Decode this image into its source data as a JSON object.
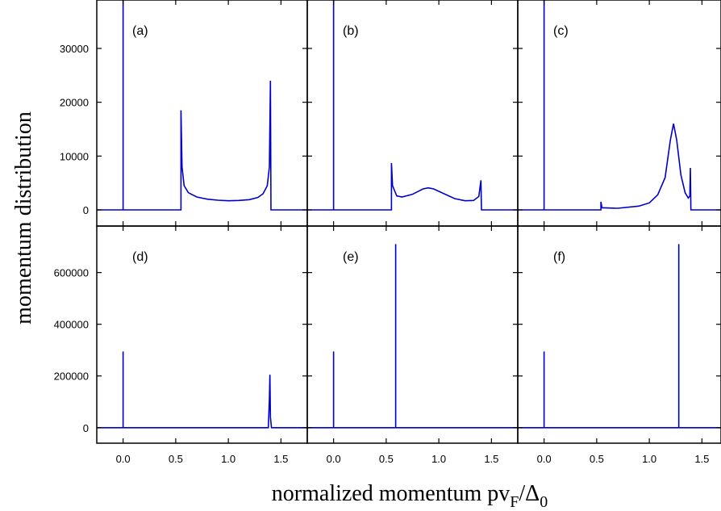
{
  "chart_data": {
    "type": "line",
    "layout": "2x3 panel grid, shared x axis per column, shared y axis per row",
    "xlabel": {
      "main": "normalized momentum  pv",
      "sub1": "F",
      "mid": "/Δ",
      "sub2": "0"
    },
    "ylabel": "momentum distribution",
    "xlim": [
      -0.25,
      1.75
    ],
    "xticks": [
      "0.0",
      "0.5",
      "1.0",
      "1.5"
    ],
    "x_tick_values": [
      0.0,
      0.5,
      1.0,
      1.5
    ],
    "rows": [
      {
        "ylim": [
          -3000,
          39000
        ],
        "yticks": [
          "0",
          "10000",
          "20000",
          "30000"
        ],
        "y_tick_values": [
          0,
          10000,
          20000,
          30000
        ]
      },
      {
        "ylim": [
          -60000,
          780000
        ],
        "yticks": [
          "0",
          "200000",
          "400000",
          "600000"
        ],
        "y_tick_values": [
          0,
          200000,
          400000,
          600000
        ]
      }
    ],
    "line_color": "#0000cc",
    "grid": false,
    "panels": [
      {
        "label": "(a)",
        "row": 0,
        "col": 0,
        "series": [
          {
            "points": [
              [
                -0.25,
                0
              ],
              [
                0,
                0
              ],
              [
                0,
                39000
              ],
              [
                0,
                0
              ],
              [
                0.55,
                0
              ],
              [
                0.55,
                18500
              ],
              [
                0.56,
                8000
              ],
              [
                0.58,
                4500
              ],
              [
                0.62,
                3200
              ],
              [
                0.7,
                2400
              ],
              [
                0.8,
                2000
              ],
              [
                0.9,
                1800
              ],
              [
                1.0,
                1700
              ],
              [
                1.1,
                1750
              ],
              [
                1.2,
                1900
              ],
              [
                1.28,
                2300
              ],
              [
                1.33,
                3000
              ],
              [
                1.37,
                4500
              ],
              [
                1.39,
                8000
              ],
              [
                1.4,
                24000
              ],
              [
                1.405,
                0
              ],
              [
                1.75,
                0
              ]
            ]
          }
        ]
      },
      {
        "label": "(b)",
        "row": 0,
        "col": 1,
        "series": [
          {
            "points": [
              [
                -0.25,
                0
              ],
              [
                0,
                0
              ],
              [
                0,
                39000
              ],
              [
                0,
                0
              ],
              [
                0.55,
                0
              ],
              [
                0.55,
                8700
              ],
              [
                0.56,
                4500
              ],
              [
                0.6,
                2600
              ],
              [
                0.65,
                2400
              ],
              [
                0.75,
                2900
              ],
              [
                0.85,
                3900
              ],
              [
                0.9,
                4100
              ],
              [
                0.95,
                3900
              ],
              [
                1.05,
                3000
              ],
              [
                1.15,
                2100
              ],
              [
                1.25,
                1700
              ],
              [
                1.33,
                1750
              ],
              [
                1.38,
                2500
              ],
              [
                1.4,
                5500
              ],
              [
                1.405,
                0
              ],
              [
                1.75,
                0
              ]
            ]
          }
        ]
      },
      {
        "label": "(c)",
        "row": 0,
        "col": 2,
        "series": [
          {
            "points": [
              [
                -0.25,
                0
              ],
              [
                0,
                0
              ],
              [
                0,
                39000
              ],
              [
                0,
                0
              ],
              [
                0.54,
                0
              ],
              [
                0.54,
                1500
              ],
              [
                0.55,
                400
              ],
              [
                0.7,
                300
              ],
              [
                0.9,
                700
              ],
              [
                1.0,
                1300
              ],
              [
                1.08,
                2800
              ],
              [
                1.15,
                6000
              ],
              [
                1.2,
                13000
              ],
              [
                1.23,
                16000
              ],
              [
                1.26,
                13000
              ],
              [
                1.3,
                6500
              ],
              [
                1.34,
                3200
              ],
              [
                1.37,
                2200
              ],
              [
                1.385,
                2600
              ],
              [
                1.39,
                7800
              ],
              [
                1.395,
                0
              ],
              [
                1.75,
                0
              ]
            ]
          }
        ]
      },
      {
        "label": "(d)",
        "row": 1,
        "col": 0,
        "series": [
          {
            "points": [
              [
                -0.25,
                0
              ],
              [
                0,
                0
              ],
              [
                0,
                295000
              ],
              [
                0,
                0
              ],
              [
                1.38,
                0
              ],
              [
                1.39,
                110000
              ],
              [
                1.395,
                205000
              ],
              [
                1.4,
                40000
              ],
              [
                1.41,
                0
              ],
              [
                1.75,
                0
              ]
            ]
          }
        ]
      },
      {
        "label": "(e)",
        "row": 1,
        "col": 1,
        "series": [
          {
            "points": [
              [
                -0.25,
                0
              ],
              [
                0,
                0
              ],
              [
                0,
                295000
              ],
              [
                0,
                0
              ],
              [
                0.59,
                0
              ],
              [
                0.59,
                710000
              ],
              [
                0.59,
                0
              ],
              [
                1.75,
                0
              ]
            ]
          }
        ]
      },
      {
        "label": "(f)",
        "row": 1,
        "col": 2,
        "series": [
          {
            "points": [
              [
                -0.25,
                0
              ],
              [
                0,
                0
              ],
              [
                0,
                295000
              ],
              [
                0,
                0
              ],
              [
                1.28,
                0
              ],
              [
                1.28,
                710000
              ],
              [
                1.28,
                0
              ],
              [
                1.75,
                0
              ]
            ]
          }
        ]
      }
    ]
  }
}
